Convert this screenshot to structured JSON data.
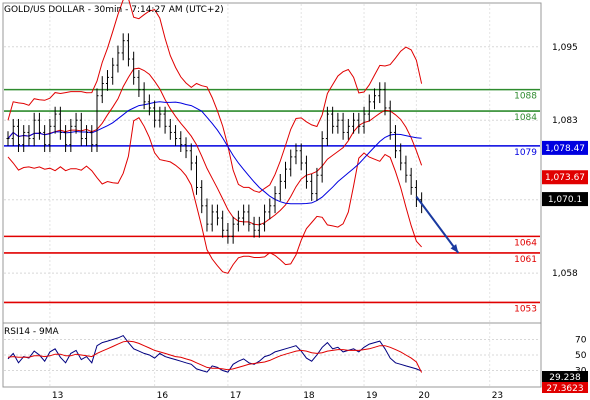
{
  "chart_data": [
    {
      "type": "candlestick",
      "title": "GOLD/US DOLLAR - 30min - 7:14:27 AM (UTC+2)",
      "x_labels": [
        "13",
        "16",
        "17",
        "18",
        "19",
        "20",
        "23"
      ],
      "y_ticks": [
        "1,095",
        "1,083",
        "1,070",
        "1,058"
      ],
      "y_tick_values": [
        1095,
        1083,
        1070,
        1058
      ],
      "ylim": [
        1050,
        1102
      ],
      "grid": true,
      "price_series": [
        1080,
        1082,
        1079,
        1081,
        1080,
        1083,
        1081,
        1079,
        1082,
        1084,
        1081,
        1079,
        1082,
        1083,
        1080,
        1081,
        1079,
        1087,
        1089,
        1090,
        1092,
        1094,
        1096,
        1093,
        1090,
        1088,
        1086,
        1085,
        1083,
        1084,
        1082,
        1081,
        1080,
        1079,
        1078,
        1076,
        1072,
        1069,
        1066,
        1068,
        1067,
        1065,
        1064,
        1066,
        1067,
        1068,
        1066,
        1065,
        1066,
        1068,
        1069,
        1071,
        1073,
        1075,
        1077,
        1078,
        1076,
        1073,
        1071,
        1074,
        1080,
        1084,
        1082,
        1083,
        1081,
        1082,
        1083,
        1082,
        1084,
        1086,
        1087,
        1088,
        1085,
        1081,
        1078,
        1076,
        1074,
        1072,
        1070,
        1069
      ],
      "support_resistance": [
        {
          "label": "1088",
          "value": 1088,
          "color": "#2e8b2e"
        },
        {
          "label": "1084",
          "value": 1084.5,
          "color": "#2e8b2e"
        },
        {
          "label": "1079",
          "value": 1078.8,
          "color": "#0000e0"
        },
        {
          "label": "1064",
          "value": 1064,
          "color": "#e00000"
        },
        {
          "label": "1061",
          "value": 1061.3,
          "color": "#e00000"
        },
        {
          "label": "1053",
          "value": 1053.2,
          "color": "#e00000"
        }
      ],
      "price_boxes": [
        {
          "label": "1,078.47",
          "value": 1078.47,
          "color": "#0000e0"
        },
        {
          "label": "1,073.67",
          "value": 1073.67,
          "color": "#e00000"
        },
        {
          "label": "1,070.1",
          "value": 1070.1,
          "color": "#000000"
        }
      ],
      "forecast_arrow": {
        "from_index": 78,
        "from_value": 1070.5,
        "to_index": 86,
        "to_value": 1061.3
      }
    },
    {
      "type": "line",
      "title": "RSI14 - 9MA",
      "y_ticks": [
        "70",
        "50",
        "30"
      ],
      "y_tick_values": [
        70,
        50,
        30
      ],
      "ylim": [
        10,
        90
      ],
      "series": [
        {
          "name": "RSI14",
          "color": "#000080",
          "values": [
            45,
            52,
            40,
            48,
            46,
            55,
            50,
            42,
            54,
            58,
            47,
            40,
            52,
            56,
            44,
            48,
            40,
            62,
            66,
            68,
            70,
            72,
            75,
            66,
            58,
            55,
            52,
            50,
            46,
            52,
            48,
            46,
            44,
            42,
            40,
            38,
            32,
            30,
            28,
            36,
            34,
            30,
            28,
            38,
            42,
            45,
            40,
            38,
            42,
            48,
            50,
            54,
            56,
            58,
            60,
            62,
            55,
            46,
            42,
            50,
            60,
            66,
            58,
            60,
            54,
            56,
            58,
            54,
            60,
            64,
            66,
            68,
            58,
            46,
            40,
            38,
            36,
            34,
            32,
            29.238
          ]
        },
        {
          "name": "9MA",
          "color": "#e00000",
          "values": [
            47,
            48,
            47,
            47,
            47,
            49,
            49,
            48,
            49,
            51,
            51,
            49,
            49,
            51,
            50,
            49,
            48,
            52,
            55,
            58,
            61,
            64,
            67,
            68,
            67,
            65,
            62,
            59,
            56,
            54,
            52,
            50,
            48,
            47,
            45,
            43,
            40,
            37,
            34,
            33,
            33,
            32,
            31,
            32,
            34,
            36,
            38,
            39,
            40,
            41,
            43,
            46,
            49,
            51,
            53,
            55,
            56,
            55,
            53,
            52,
            53,
            55,
            56,
            57,
            57,
            56,
            56,
            56,
            57,
            58,
            60,
            62,
            62,
            60,
            57,
            54,
            50,
            46,
            41,
            27.3623
          ]
        }
      ],
      "value_boxes": [
        {
          "label": "29.238",
          "value": 29.238,
          "color": "#000000"
        },
        {
          "label": "27.3623",
          "value": 27.3623,
          "color": "#e00000"
        }
      ]
    }
  ]
}
